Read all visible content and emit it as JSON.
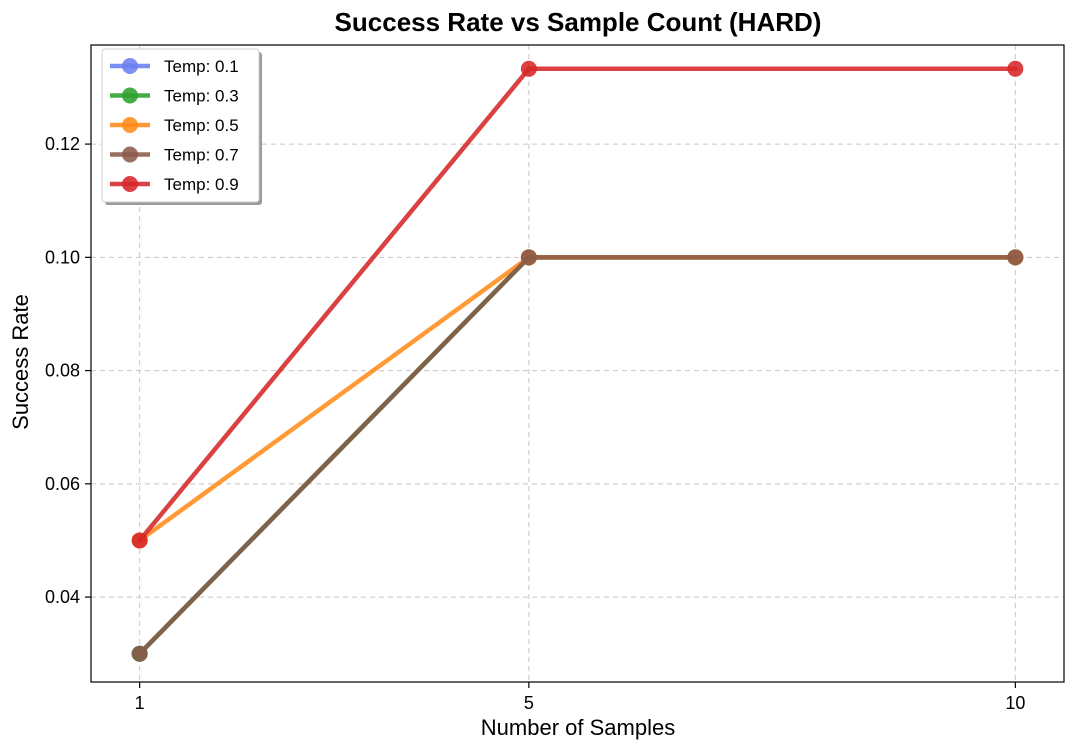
{
  "chart_data": {
    "type": "line",
    "title": "Success Rate vs Sample Count (HARD)",
    "xlabel": "Number of Samples",
    "ylabel": "Success Rate",
    "x": [
      1,
      5,
      10
    ],
    "x_ticks": [
      "1",
      "5",
      "10"
    ],
    "y_ticks": [
      "0.04",
      "0.06",
      "0.08",
      "0.10",
      "0.12"
    ],
    "xlim": [
      0.5,
      10.5
    ],
    "ylim": [
      0.025,
      0.1375
    ],
    "grid": true,
    "legend_position": "top-left",
    "series": [
      {
        "name": "Temp: 0.1",
        "color": "#6b7ff0",
        "values": [
          0.03,
          0.1,
          0.1
        ]
      },
      {
        "name": "Temp: 0.3",
        "color": "#2ca02c",
        "values": [
          0.03,
          0.1,
          0.1
        ]
      },
      {
        "name": "Temp: 0.5",
        "color": "#ff8c1a",
        "values": [
          0.05,
          0.1,
          0.1
        ]
      },
      {
        "name": "Temp: 0.7",
        "color": "#8c5a4a",
        "values": [
          0.03,
          0.1,
          0.1
        ]
      },
      {
        "name": "Temp: 0.9",
        "color": "#d62728",
        "values": [
          0.05,
          0.1333,
          0.1333
        ]
      }
    ]
  }
}
